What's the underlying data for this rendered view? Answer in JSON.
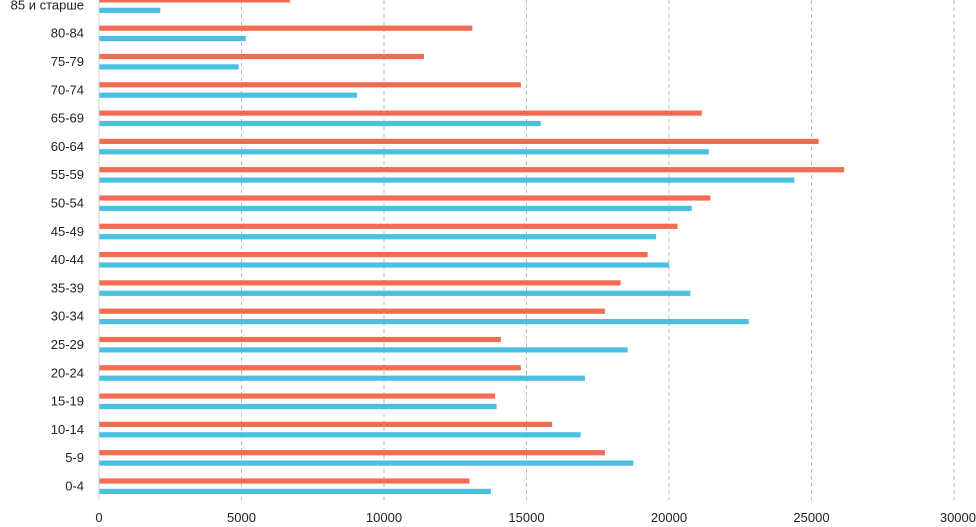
{
  "chart_data": {
    "type": "bar",
    "orientation": "horizontal",
    "title": "",
    "xlabel": "",
    "ylabel": "",
    "xlim": [
      0,
      30000
    ],
    "x_ticks": [
      0,
      5000,
      10000,
      15000,
      20000,
      25000,
      30000
    ],
    "grid": "vertical-dashed",
    "legend": "none",
    "categories": [
      "0-4",
      "5-9",
      "10-14",
      "15-19",
      "20-24",
      "25-29",
      "30-34",
      "35-39",
      "40-44",
      "45-49",
      "50-54",
      "55-59",
      "60-64",
      "65-69",
      "70-74",
      "75-79",
      "80-84",
      "85 и старше"
    ],
    "series": [
      {
        "name": "series-orange",
        "color": "#f26b52",
        "values": [
          13000,
          17750,
          15900,
          13900,
          14800,
          14100,
          17750,
          18300,
          19250,
          20300,
          21450,
          26150,
          25250,
          21150,
          14800,
          11400,
          13100,
          6700
        ]
      },
      {
        "name": "series-blue",
        "color": "#4bbfe0",
        "values": [
          13750,
          18750,
          16900,
          13950,
          17050,
          18550,
          22800,
          20750,
          20000,
          19550,
          20800,
          24400,
          21400,
          15500,
          9050,
          4900,
          5150,
          2150
        ]
      }
    ]
  }
}
